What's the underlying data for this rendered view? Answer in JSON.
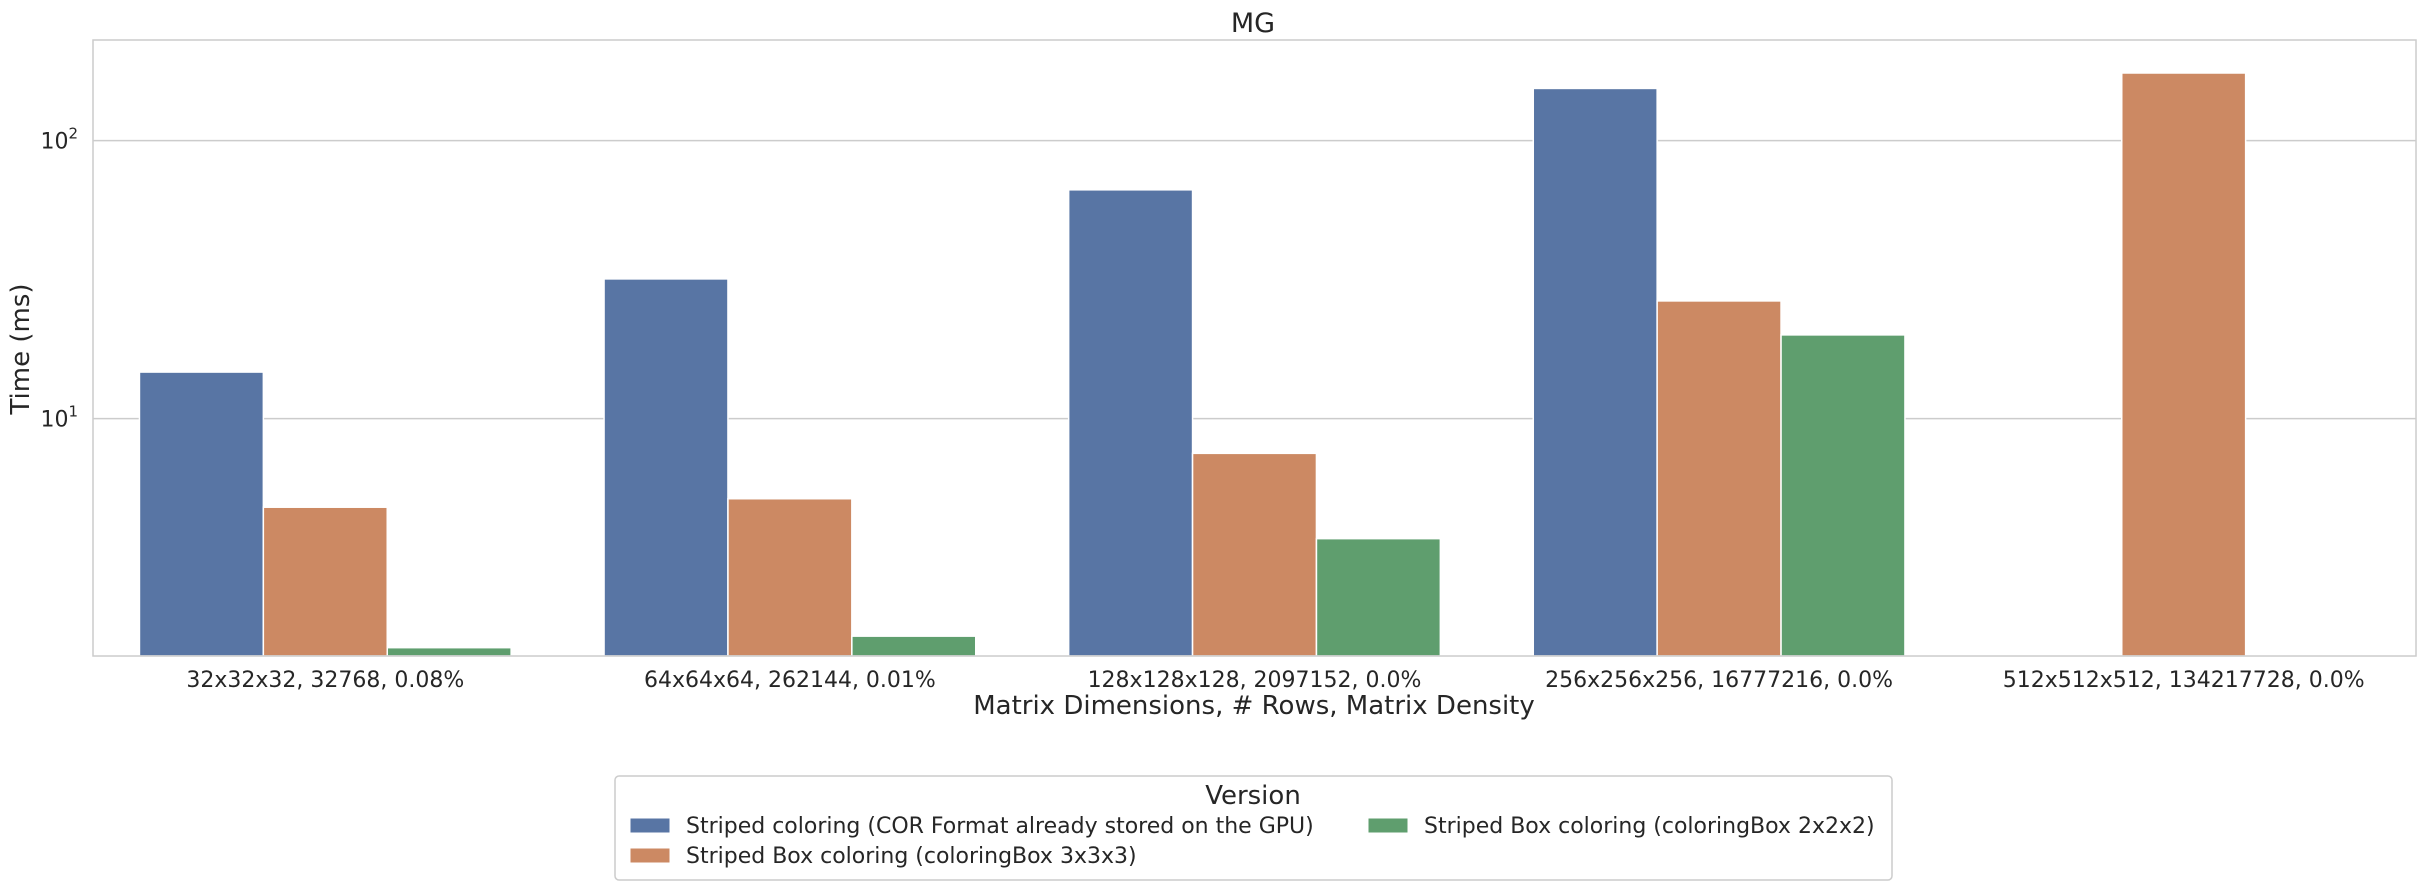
{
  "chart_data": {
    "type": "bar",
    "title": "MG",
    "xlabel": "Matrix Dimensions, # Rows, Matrix Density",
    "ylabel": "Time (ms)",
    "yscale": "log",
    "ylim": [
      1.4,
      230
    ],
    "yticks": [
      {
        "value": 10,
        "base": "10",
        "exp": "1"
      },
      {
        "value": 100,
        "base": "10",
        "exp": "2"
      }
    ],
    "grid": true,
    "categories": [
      "32x32x32, 32768, 0.08%",
      "64x64x64, 262144, 0.01%",
      "128x128x128, 2097152, 0.0%",
      "256x256x256, 16777216, 0.0%",
      "512x512x512, 134217728, 0.0%"
    ],
    "series": [
      {
        "name": "Striped coloring (COR Format already stored on the GPU)",
        "color": "#5875a4",
        "values": [
          14.7,
          31.8,
          66.5,
          154.0,
          null
        ]
      },
      {
        "name": "Striped Box coloring (coloringBox 3x3x3)",
        "color": "#cc8963",
        "values": [
          4.8,
          5.15,
          7.5,
          26.5,
          175.0
        ]
      },
      {
        "name": "Striped Box coloring (coloringBox 2x2x2)",
        "color": "#5f9e6e",
        "values": [
          1.5,
          1.65,
          3.7,
          20.0,
          null
        ]
      }
    ],
    "legend": {
      "title": "Version",
      "position": "bottom-center",
      "columns": 2
    }
  }
}
